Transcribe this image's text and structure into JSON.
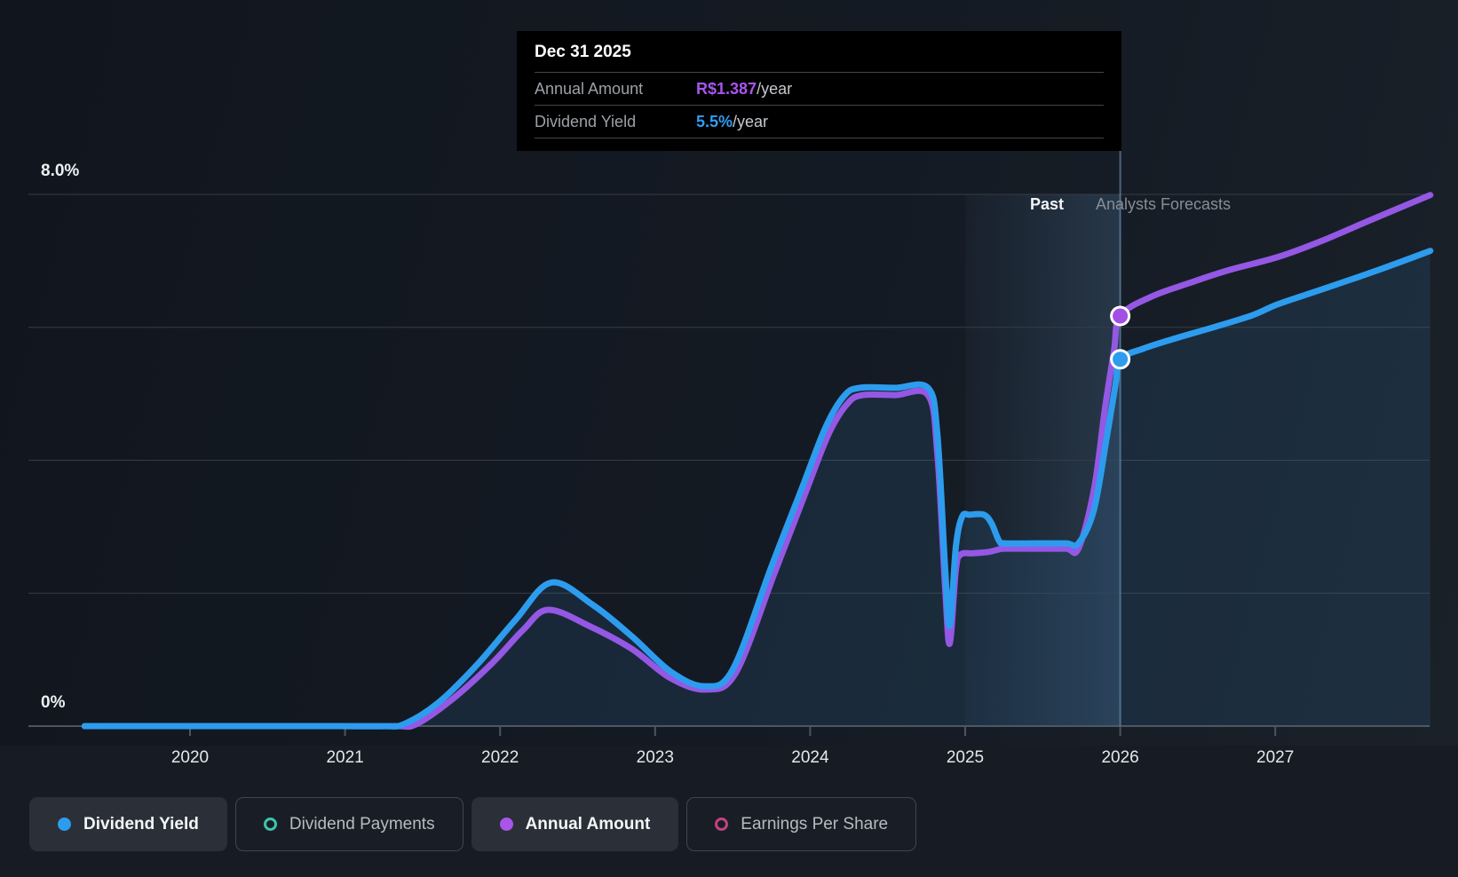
{
  "tooltip": {
    "date": "Dec 31 2025",
    "rows": [
      {
        "label": "Annual Amount",
        "value": "R$1.387",
        "suffix": "/year",
        "value_color": "#A855F0"
      },
      {
        "label": "Dividend Yield",
        "value": "5.5%",
        "suffix": "/year",
        "value_color": "#2E9DF5"
      }
    ]
  },
  "zones": {
    "past_label": "Past",
    "forecast_label": "Analysts Forecasts"
  },
  "legend": [
    {
      "label": "Dividend Yield",
      "marker": "dot",
      "color": "#2D9CEE",
      "active": true
    },
    {
      "label": "Dividend Payments",
      "marker": "ring",
      "color": "#3EC3AE",
      "active": false
    },
    {
      "label": "Annual Amount",
      "marker": "dot",
      "color": "#A855E8",
      "active": true
    },
    {
      "label": "Earnings Per Share",
      "marker": "ring",
      "color": "#C2427F",
      "active": false
    }
  ],
  "colors": {
    "background": "#171C24",
    "gridline": "#363C45",
    "baseline": "#4E545C",
    "divider_line": "rgba(125,175,225,0.5)",
    "band_from": "rgba(96,160,220,0.04)",
    "band_to": "rgba(120,180,235,0.18)",
    "area_fill": "rgba(56,135,200,0.14)"
  },
  "chart_data": {
    "type": "line",
    "title": "Dividend chart: past performance and analysts forecasts",
    "x_axis": {
      "min": 2018.96,
      "max": 2028.0,
      "ticks": [
        2020,
        2021,
        2022,
        2023,
        2024,
        2025,
        2026,
        2027
      ]
    },
    "y_axis": {
      "min": 0,
      "max": 8,
      "gridline_step": 2,
      "labels": {
        "top": "8.0%",
        "bottom": "0%"
      }
    },
    "divider_x": 2026.0,
    "highlight_band": [
      2025.0,
      2026.0
    ],
    "series": [
      {
        "name": "Dividend Yield",
        "color": "#2D9CEE",
        "fill": true,
        "points": [
          [
            2019.32,
            0
          ],
          [
            2020.2,
            0
          ],
          [
            2020.9,
            0
          ],
          [
            2021.25,
            0
          ],
          [
            2021.38,
            0.03
          ],
          [
            2021.6,
            0.35
          ],
          [
            2021.85,
            0.92
          ],
          [
            2022.1,
            1.6
          ],
          [
            2022.33,
            2.16
          ],
          [
            2022.6,
            1.82
          ],
          [
            2022.85,
            1.35
          ],
          [
            2023.1,
            0.82
          ],
          [
            2023.32,
            0.6
          ],
          [
            2023.5,
            0.85
          ],
          [
            2023.75,
            2.4
          ],
          [
            2023.95,
            3.6
          ],
          [
            2024.1,
            4.5
          ],
          [
            2024.22,
            4.97
          ],
          [
            2024.32,
            5.09
          ],
          [
            2024.55,
            5.09
          ],
          [
            2024.76,
            5.09
          ],
          [
            2024.82,
            4.4
          ],
          [
            2024.87,
            2.4
          ],
          [
            2024.9,
            1.51
          ],
          [
            2024.94,
            2.7
          ],
          [
            2024.98,
            3.15
          ],
          [
            2025.03,
            3.18
          ],
          [
            2025.12,
            3.18
          ],
          [
            2025.17,
            3.05
          ],
          [
            2025.22,
            2.78
          ],
          [
            2025.26,
            2.75
          ],
          [
            2025.45,
            2.75
          ],
          [
            2025.65,
            2.75
          ],
          [
            2025.73,
            2.75
          ],
          [
            2025.83,
            3.25
          ],
          [
            2025.91,
            4.3
          ],
          [
            2025.97,
            5.15
          ],
          [
            2026.0,
            5.52
          ],
          [
            2026.15,
            5.68
          ],
          [
            2026.35,
            5.83
          ],
          [
            2026.6,
            6.0
          ],
          [
            2026.85,
            6.18
          ],
          [
            2027.02,
            6.35
          ],
          [
            2027.3,
            6.57
          ],
          [
            2027.65,
            6.85
          ],
          [
            2028.0,
            7.15
          ]
        ]
      },
      {
        "name": "Annual Amount",
        "color": "#9458E4",
        "fill": false,
        "points": [
          [
            2019.32,
            0
          ],
          [
            2020.2,
            0
          ],
          [
            2020.9,
            0
          ],
          [
            2021.32,
            0
          ],
          [
            2021.46,
            0.03
          ],
          [
            2021.7,
            0.42
          ],
          [
            2021.95,
            0.95
          ],
          [
            2022.15,
            1.45
          ],
          [
            2022.31,
            1.75
          ],
          [
            2022.58,
            1.5
          ],
          [
            2022.85,
            1.16
          ],
          [
            2023.1,
            0.72
          ],
          [
            2023.33,
            0.55
          ],
          [
            2023.52,
            0.8
          ],
          [
            2023.77,
            2.3
          ],
          [
            2023.96,
            3.45
          ],
          [
            2024.12,
            4.4
          ],
          [
            2024.24,
            4.85
          ],
          [
            2024.34,
            4.98
          ],
          [
            2024.55,
            4.98
          ],
          [
            2024.76,
            4.98
          ],
          [
            2024.82,
            4.1
          ],
          [
            2024.87,
            2.1
          ],
          [
            2024.9,
            1.24
          ],
          [
            2024.94,
            2.35
          ],
          [
            2024.97,
            2.58
          ],
          [
            2025.05,
            2.6
          ],
          [
            2025.15,
            2.62
          ],
          [
            2025.22,
            2.66
          ],
          [
            2025.26,
            2.67
          ],
          [
            2025.45,
            2.67
          ],
          [
            2025.65,
            2.67
          ],
          [
            2025.73,
            2.67
          ],
          [
            2025.83,
            3.55
          ],
          [
            2025.9,
            4.75
          ],
          [
            2025.96,
            5.65
          ],
          [
            2026.0,
            6.17
          ],
          [
            2026.2,
            6.46
          ],
          [
            2026.45,
            6.67
          ],
          [
            2026.7,
            6.86
          ],
          [
            2027.02,
            7.06
          ],
          [
            2027.3,
            7.3
          ],
          [
            2027.62,
            7.62
          ],
          [
            2028.0,
            7.99
          ]
        ]
      }
    ],
    "markers": [
      {
        "series": "Dividend Yield",
        "x": 2026.0,
        "y": 5.52,
        "color": "#2D9CEE"
      },
      {
        "series": "Annual Amount",
        "x": 2026.0,
        "y": 6.17,
        "color": "#A24FE5"
      }
    ]
  }
}
